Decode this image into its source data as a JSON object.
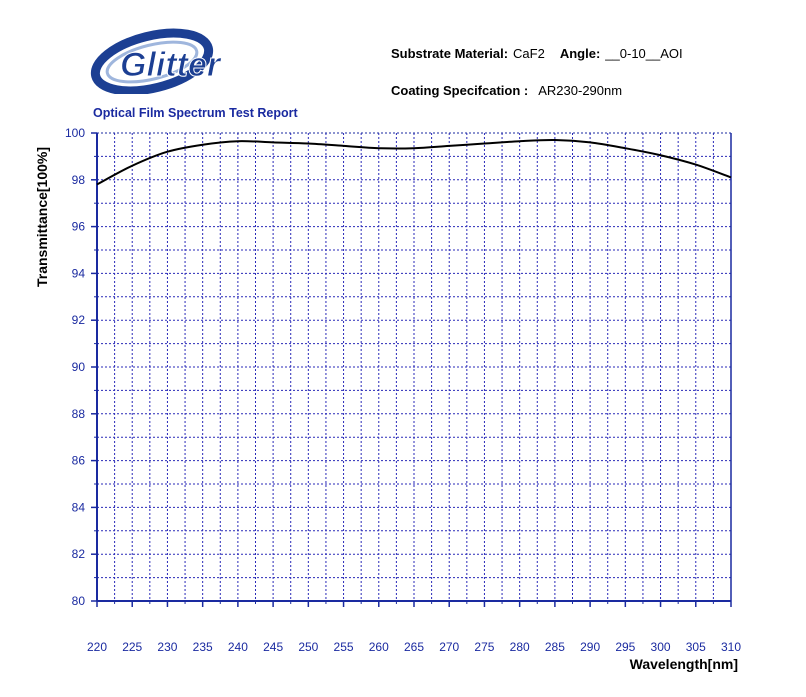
{
  "header": {
    "substrate_label": "Substrate Material:",
    "substrate_value": "CaF2",
    "angle_label": "Angle:",
    "angle_value": "__0-10__AOI",
    "coating_label": "Coating Specifcation :",
    "coating_value": "AR230-290nm",
    "report_title": "Optical Film Spectrum Test Report"
  },
  "logo": {
    "text": "Glitter",
    "primary_color": "#1c3f93",
    "accent_color": "#9fb6dd"
  },
  "colors": {
    "axis": "#1a2aa0",
    "grid": "#2a2ab8",
    "curve": "#000000",
    "tick_label": "#1a2aa0"
  },
  "chart_data": {
    "type": "line",
    "title": "",
    "xlabel": "Wavelength[nm]",
    "ylabel": "Transmittance[100%]",
    "xlim": [
      220,
      310
    ],
    "ylim": [
      80,
      100
    ],
    "xticks": [
      220,
      225,
      230,
      235,
      240,
      245,
      250,
      255,
      260,
      265,
      270,
      275,
      280,
      285,
      290,
      295,
      300,
      305,
      310
    ],
    "yticks": [
      80,
      82,
      84,
      86,
      88,
      90,
      92,
      94,
      96,
      98,
      100
    ],
    "grid": true,
    "grid_style": "dotted",
    "legend": "none",
    "series": [
      {
        "x": [
          220,
          225,
          230,
          235,
          240,
          245,
          250,
          255,
          260,
          265,
          270,
          275,
          280,
          285,
          290,
          295,
          300,
          305,
          310
        ],
        "y": [
          97.8,
          98.6,
          99.2,
          99.5,
          99.65,
          99.6,
          99.55,
          99.45,
          99.35,
          99.35,
          99.45,
          99.55,
          99.65,
          99.7,
          99.6,
          99.35,
          99.05,
          98.65,
          98.1
        ]
      }
    ]
  }
}
